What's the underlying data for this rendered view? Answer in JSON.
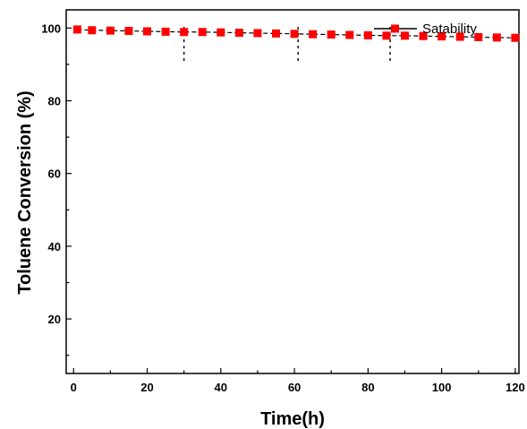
{
  "chart_data": {
    "type": "line",
    "xlabel": "Time(h)",
    "ylabel": "Toluene Conversion (%)",
    "xlim": [
      -2,
      121
    ],
    "ylim": [
      5,
      105
    ],
    "xticks": [
      0,
      20,
      40,
      60,
      80,
      100,
      120
    ],
    "yticks": [
      20,
      40,
      60,
      80,
      100
    ],
    "grid": false,
    "legend_position": "top-right",
    "series": [
      {
        "name": "Satability",
        "marker": "square",
        "line_style": "dashed",
        "marker_color": "#ff0000",
        "line_color": "#000000",
        "x": [
          1,
          5,
          10,
          15,
          20,
          25,
          30,
          35,
          40,
          45,
          50,
          55,
          60,
          65,
          70,
          75,
          80,
          85,
          90,
          95,
          100,
          105,
          110,
          115,
          120
        ],
        "y": [
          99.6,
          99.4,
          99.3,
          99.2,
          99.1,
          99.0,
          98.9,
          98.9,
          98.8,
          98.7,
          98.6,
          98.5,
          98.4,
          98.3,
          98.2,
          98.1,
          98.0,
          97.9,
          97.9,
          97.8,
          97.7,
          97.6,
          97.5,
          97.4,
          97.3
        ]
      }
    ],
    "annotations": [
      {
        "type": "vertical-dashed-marker",
        "x": 30
      },
      {
        "type": "vertical-dashed-marker",
        "x": 61
      },
      {
        "type": "vertical-dashed-marker",
        "x": 86
      }
    ]
  }
}
